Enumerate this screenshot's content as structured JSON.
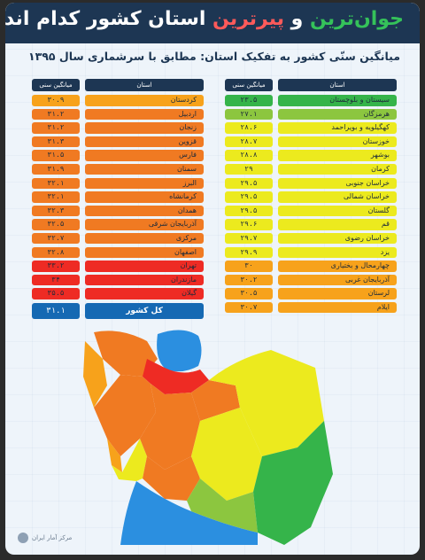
{
  "title": {
    "part1": "جوان‌ترین",
    "part2": "و",
    "part3": "پیرترین",
    "part4": "استان کشور کدام اند؟"
  },
  "subtitle": "میانگین سنّی کشور به تفکیک استان: مطابق با سرشماری سال ۱۳۹۵",
  "column_headers": {
    "province": "استان",
    "avg_age": "میانگین سنی"
  },
  "colors": {
    "header": "#1d3653",
    "total": "#1569b3"
  },
  "chart_data": {
    "type": "table",
    "title": "میانگین سنّی کشور به تفکیک استان: مطابق با سرشماری سال ۱۳۹۵",
    "columns": [
      "استان",
      "میانگین سنی"
    ],
    "right_column": [
      {
        "province": "سیستان و بلوچستان",
        "value": 23.5,
        "label": "۲۳.۵",
        "color": "#35b44a"
      },
      {
        "province": "هرمزگان",
        "value": 27.1,
        "label": "۲۷.۱",
        "color": "#8cc63f"
      },
      {
        "province": "کهگیلویه و بویراحمد",
        "value": 28.6,
        "label": "۲۸.۶",
        "color": "#ecea1e"
      },
      {
        "province": "خوزستان",
        "value": 28.7,
        "label": "۲۸.۷",
        "color": "#ecea1e"
      },
      {
        "province": "بوشهر",
        "value": 28.8,
        "label": "۲۸.۸",
        "color": "#ecea1e"
      },
      {
        "province": "کرمان",
        "value": 29,
        "label": "۲۹",
        "color": "#ecea1e"
      },
      {
        "province": "خراسان جنوبی",
        "value": 29.5,
        "label": "۲۹.۵",
        "color": "#ecea1e"
      },
      {
        "province": "خراسان شمالی",
        "value": 29.5,
        "label": "۲۹.۵",
        "color": "#ecea1e"
      },
      {
        "province": "گلستان",
        "value": 29.5,
        "label": "۲۹.۵",
        "color": "#ecea1e"
      },
      {
        "province": "قم",
        "value": 29.6,
        "label": "۲۹.۶",
        "color": "#ecea1e"
      },
      {
        "province": "خراسان رضوی",
        "value": 29.7,
        "label": "۲۹.۷",
        "color": "#ecea1e"
      },
      {
        "province": "یزد",
        "value": 29.9,
        "label": "۲۹.۹",
        "color": "#ecea1e"
      },
      {
        "province": "چهارمحال و بختیاری",
        "value": 30,
        "label": "۳۰",
        "color": "#f7a21b"
      },
      {
        "province": "آذربایجان غربی",
        "value": 30.2,
        "label": "۳۰.۲",
        "color": "#f7a21b"
      },
      {
        "province": "لرستان",
        "value": 30.5,
        "label": "۳۰.۵",
        "color": "#f7a21b"
      },
      {
        "province": "ایلام",
        "value": 30.7,
        "label": "۳۰.۷",
        "color": "#f7a21b"
      }
    ],
    "left_column": [
      {
        "province": "کردستان",
        "value": 30.9,
        "label": "۳۰.۹",
        "color": "#f7a21b"
      },
      {
        "province": "اردبیل",
        "value": 31.2,
        "label": "۳۱.۲",
        "color": "#f07a22"
      },
      {
        "province": "زنجان",
        "value": 31.2,
        "label": "۳۱.۲",
        "color": "#f07a22"
      },
      {
        "province": "قزوین",
        "value": 31.3,
        "label": "۳۱.۳",
        "color": "#f07a22"
      },
      {
        "province": "فارس",
        "value": 31.5,
        "label": "۳۱.۵",
        "color": "#f07a22"
      },
      {
        "province": "سمنان",
        "value": 31.9,
        "label": "۳۱.۹",
        "color": "#f07a22"
      },
      {
        "province": "البرز",
        "value": 32.1,
        "label": "۳۲.۱",
        "color": "#f07a22"
      },
      {
        "province": "کرمانشاه",
        "value": 32.1,
        "label": "۳۲.۱",
        "color": "#f07a22"
      },
      {
        "province": "همدان",
        "value": 32.3,
        "label": "۳۲.۳",
        "color": "#f07a22"
      },
      {
        "province": "آذربایجان شرقی",
        "value": 32.5,
        "label": "۳۲.۵",
        "color": "#f07a22"
      },
      {
        "province": "مرکزی",
        "value": 32.7,
        "label": "۳۲.۷",
        "color": "#f07a22"
      },
      {
        "province": "اصفهان",
        "value": 32.8,
        "label": "۳۲.۸",
        "color": "#f07a22"
      },
      {
        "province": "تهران",
        "value": 33.2,
        "label": "۳۳.۲",
        "color": "#ee2b24"
      },
      {
        "province": "مازندران",
        "value": 34,
        "label": "۳۴",
        "color": "#ee2b24"
      },
      {
        "province": "گیلان",
        "value": 35.5,
        "label": "۳۵.۵",
        "color": "#ee2b24"
      }
    ],
    "total": {
      "label": "کل کشور",
      "value": 31.1,
      "display": "۳۱.۱"
    }
  },
  "logo_text": "مرکز آمار ایران"
}
